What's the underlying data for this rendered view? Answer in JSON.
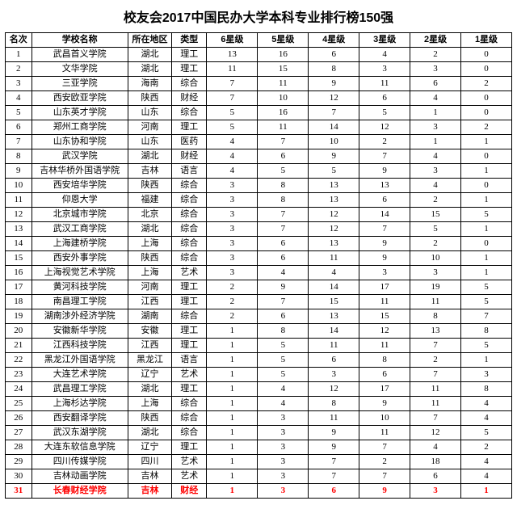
{
  "title": "校友会2017中国民办大学本科专业排行榜150强",
  "columns": [
    "名次",
    "学校名称",
    "所在地区",
    "类型",
    "6星级",
    "5星级",
    "4星级",
    "3星级",
    "2星级",
    "1星级"
  ],
  "highlight_color": "#ff0000",
  "rows": [
    {
      "rank": "1",
      "name": "武昌首义学院",
      "region": "湖北",
      "type": "理工",
      "s6": "13",
      "s5": "16",
      "s4": "6",
      "s3": "4",
      "s2": "2",
      "s1": "0",
      "hl": false
    },
    {
      "rank": "2",
      "name": "文华学院",
      "region": "湖北",
      "type": "理工",
      "s6": "11",
      "s5": "15",
      "s4": "8",
      "s3": "3",
      "s2": "3",
      "s1": "0",
      "hl": false
    },
    {
      "rank": "3",
      "name": "三亚学院",
      "region": "海南",
      "type": "综合",
      "s6": "7",
      "s5": "11",
      "s4": "9",
      "s3": "11",
      "s2": "6",
      "s1": "2",
      "hl": false
    },
    {
      "rank": "4",
      "name": "西安欧亚学院",
      "region": "陕西",
      "type": "财经",
      "s6": "7",
      "s5": "10",
      "s4": "12",
      "s3": "6",
      "s2": "4",
      "s1": "0",
      "hl": false
    },
    {
      "rank": "5",
      "name": "山东英才学院",
      "region": "山东",
      "type": "综合",
      "s6": "5",
      "s5": "16",
      "s4": "7",
      "s3": "5",
      "s2": "1",
      "s1": "0",
      "hl": false
    },
    {
      "rank": "6",
      "name": "郑州工商学院",
      "region": "河南",
      "type": "理工",
      "s6": "5",
      "s5": "11",
      "s4": "14",
      "s3": "12",
      "s2": "3",
      "s1": "2",
      "hl": false
    },
    {
      "rank": "7",
      "name": "山东协和学院",
      "region": "山东",
      "type": "医药",
      "s6": "4",
      "s5": "7",
      "s4": "10",
      "s3": "2",
      "s2": "1",
      "s1": "1",
      "hl": false
    },
    {
      "rank": "8",
      "name": "武汉学院",
      "region": "湖北",
      "type": "财经",
      "s6": "4",
      "s5": "6",
      "s4": "9",
      "s3": "7",
      "s2": "4",
      "s1": "0",
      "hl": false
    },
    {
      "rank": "9",
      "name": "吉林华桥外国语学院",
      "region": "吉林",
      "type": "语言",
      "s6": "4",
      "s5": "5",
      "s4": "5",
      "s3": "9",
      "s2": "3",
      "s1": "1",
      "hl": false
    },
    {
      "rank": "10",
      "name": "西安培华学院",
      "region": "陕西",
      "type": "综合",
      "s6": "3",
      "s5": "8",
      "s4": "13",
      "s3": "13",
      "s2": "4",
      "s1": "0",
      "hl": false
    },
    {
      "rank": "11",
      "name": "仰恩大学",
      "region": "福建",
      "type": "综合",
      "s6": "3",
      "s5": "8",
      "s4": "13",
      "s3": "6",
      "s2": "2",
      "s1": "1",
      "hl": false
    },
    {
      "rank": "12",
      "name": "北京城市学院",
      "region": "北京",
      "type": "综合",
      "s6": "3",
      "s5": "7",
      "s4": "12",
      "s3": "14",
      "s2": "15",
      "s1": "5",
      "hl": false
    },
    {
      "rank": "13",
      "name": "武汉工商学院",
      "region": "湖北",
      "type": "综合",
      "s6": "3",
      "s5": "7",
      "s4": "12",
      "s3": "7",
      "s2": "5",
      "s1": "1",
      "hl": false
    },
    {
      "rank": "14",
      "name": "上海建桥学院",
      "region": "上海",
      "type": "综合",
      "s6": "3",
      "s5": "6",
      "s4": "13",
      "s3": "9",
      "s2": "2",
      "s1": "0",
      "hl": false
    },
    {
      "rank": "15",
      "name": "西安外事学院",
      "region": "陕西",
      "type": "综合",
      "s6": "3",
      "s5": "6",
      "s4": "11",
      "s3": "9",
      "s2": "10",
      "s1": "1",
      "hl": false
    },
    {
      "rank": "16",
      "name": "上海视觉艺术学院",
      "region": "上海",
      "type": "艺术",
      "s6": "3",
      "s5": "4",
      "s4": "4",
      "s3": "3",
      "s2": "3",
      "s1": "1",
      "hl": false
    },
    {
      "rank": "17",
      "name": "黄河科技学院",
      "region": "河南",
      "type": "理工",
      "s6": "2",
      "s5": "9",
      "s4": "14",
      "s3": "17",
      "s2": "19",
      "s1": "5",
      "hl": false
    },
    {
      "rank": "18",
      "name": "南昌理工学院",
      "region": "江西",
      "type": "理工",
      "s6": "2",
      "s5": "7",
      "s4": "15",
      "s3": "11",
      "s2": "11",
      "s1": "5",
      "hl": false
    },
    {
      "rank": "19",
      "name": "湖南涉外经济学院",
      "region": "湖南",
      "type": "综合",
      "s6": "2",
      "s5": "6",
      "s4": "13",
      "s3": "15",
      "s2": "8",
      "s1": "7",
      "hl": false
    },
    {
      "rank": "20",
      "name": "安徽新华学院",
      "region": "安徽",
      "type": "理工",
      "s6": "1",
      "s5": "8",
      "s4": "14",
      "s3": "12",
      "s2": "13",
      "s1": "8",
      "hl": false
    },
    {
      "rank": "21",
      "name": "江西科技学院",
      "region": "江西",
      "type": "理工",
      "s6": "1",
      "s5": "5",
      "s4": "11",
      "s3": "11",
      "s2": "7",
      "s1": "5",
      "hl": false
    },
    {
      "rank": "22",
      "name": "黑龙江外国语学院",
      "region": "黑龙江",
      "type": "语言",
      "s6": "1",
      "s5": "5",
      "s4": "6",
      "s3": "8",
      "s2": "2",
      "s1": "1",
      "hl": false
    },
    {
      "rank": "23",
      "name": "大连艺术学院",
      "region": "辽宁",
      "type": "艺术",
      "s6": "1",
      "s5": "5",
      "s4": "3",
      "s3": "6",
      "s2": "7",
      "s1": "3",
      "hl": false
    },
    {
      "rank": "24",
      "name": "武昌理工学院",
      "region": "湖北",
      "type": "理工",
      "s6": "1",
      "s5": "4",
      "s4": "12",
      "s3": "17",
      "s2": "11",
      "s1": "8",
      "hl": false
    },
    {
      "rank": "25",
      "name": "上海杉达学院",
      "region": "上海",
      "type": "综合",
      "s6": "1",
      "s5": "4",
      "s4": "8",
      "s3": "9",
      "s2": "11",
      "s1": "4",
      "hl": false
    },
    {
      "rank": "26",
      "name": "西安翻译学院",
      "region": "陕西",
      "type": "综合",
      "s6": "1",
      "s5": "3",
      "s4": "11",
      "s3": "10",
      "s2": "7",
      "s1": "4",
      "hl": false
    },
    {
      "rank": "27",
      "name": "武汉东湖学院",
      "region": "湖北",
      "type": "综合",
      "s6": "1",
      "s5": "3",
      "s4": "9",
      "s3": "11",
      "s2": "12",
      "s1": "5",
      "hl": false
    },
    {
      "rank": "28",
      "name": "大连东软信息学院",
      "region": "辽宁",
      "type": "理工",
      "s6": "1",
      "s5": "3",
      "s4": "9",
      "s3": "7",
      "s2": "4",
      "s1": "2",
      "hl": false
    },
    {
      "rank": "29",
      "name": "四川传媒学院",
      "region": "四川",
      "type": "艺术",
      "s6": "1",
      "s5": "3",
      "s4": "7",
      "s3": "2",
      "s2": "18",
      "s1": "4",
      "hl": false
    },
    {
      "rank": "30",
      "name": "吉林动画学院",
      "region": "吉林",
      "type": "艺术",
      "s6": "1",
      "s5": "3",
      "s4": "7",
      "s3": "7",
      "s2": "6",
      "s1": "4",
      "hl": false
    },
    {
      "rank": "31",
      "name": "长春财经学院",
      "region": "吉林",
      "type": "财经",
      "s6": "1",
      "s5": "3",
      "s4": "6",
      "s3": "9",
      "s2": "3",
      "s1": "1",
      "hl": true
    }
  ]
}
